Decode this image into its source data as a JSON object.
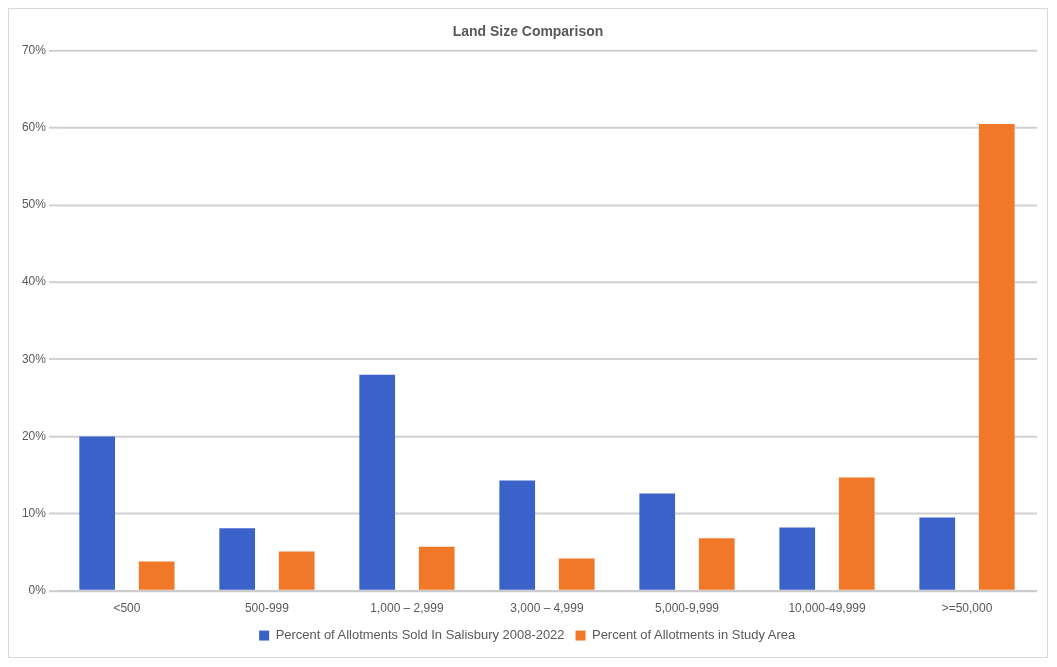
{
  "chart_data": {
    "type": "bar",
    "title": "Land Size Comparison",
    "categories": [
      "<500",
      "500-999",
      "1,000 – 2,999",
      "3,000 – 4,999",
      "5,000-9,999",
      "10,000-49,999",
      ">=50,000"
    ],
    "series": [
      {
        "name": "Percent of Allotments Sold In Salisbury 2008-2022",
        "color": "#3a62c8",
        "values": [
          20,
          8.1,
          28,
          14.3,
          12.6,
          8.2,
          9.5
        ]
      },
      {
        "name": "Percent of Allotments in Study Area",
        "color": "#f07828",
        "values": [
          3.8,
          5.1,
          5.7,
          4.2,
          6.8,
          14.7,
          60.5
        ]
      }
    ],
    "ylim": [
      0,
      70
    ],
    "yticks": [
      {
        "value": 0,
        "label": "0%"
      },
      {
        "value": 10,
        "label": "10%"
      },
      {
        "value": 20,
        "label": "20%"
      },
      {
        "value": 30,
        "label": "30%"
      },
      {
        "value": 40,
        "label": "40%"
      },
      {
        "value": 50,
        "label": "50%"
      },
      {
        "value": 60,
        "label": "60%"
      },
      {
        "value": 70,
        "label": "70%"
      }
    ],
    "grid": "y",
    "legend": "bottom"
  }
}
